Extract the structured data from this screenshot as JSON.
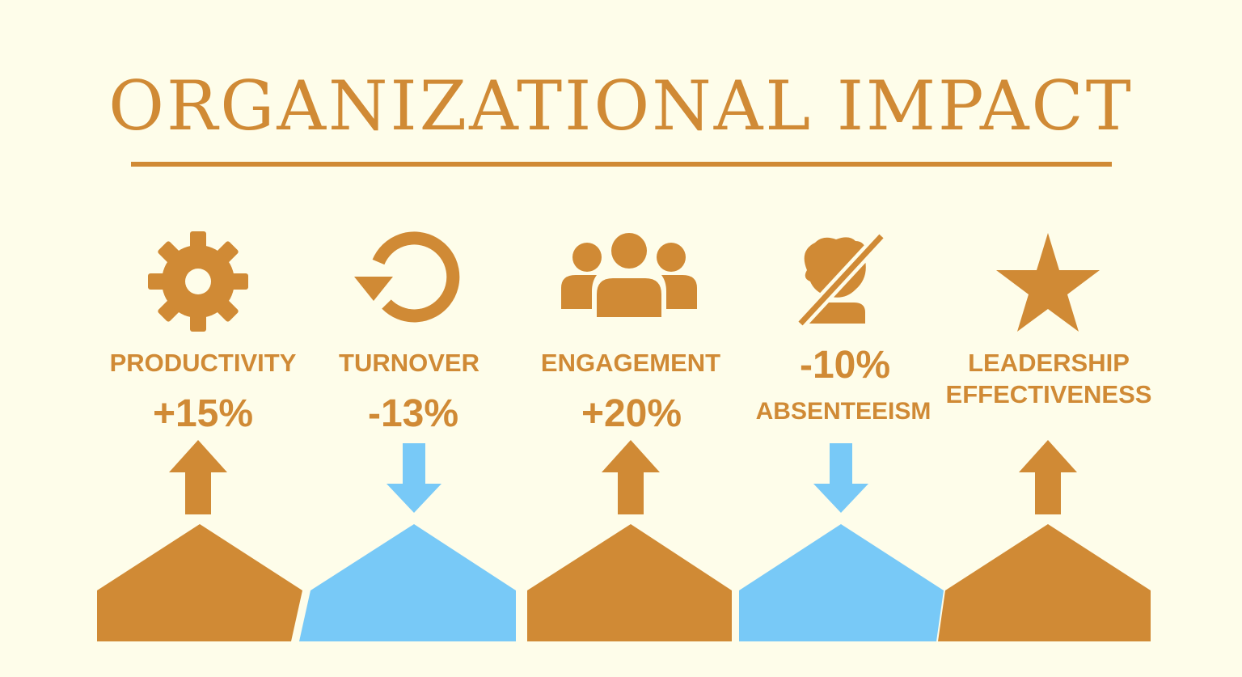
{
  "title": "ORGANIZATIONAL IMPACT",
  "colors": {
    "background": "#fefdea",
    "accent_orange": "#d08a35",
    "accent_blue": "#78c9f7"
  },
  "metrics": [
    {
      "label": "PRODUCTIVITY",
      "value": "+15%",
      "icon": "gear-icon",
      "direction": "up",
      "color": "orange"
    },
    {
      "label": "TURNOVER",
      "value": "-13%",
      "icon": "refresh-icon",
      "direction": "down",
      "color": "blue"
    },
    {
      "label": "ENGAGEMENT",
      "value": "+20%",
      "icon": "people-group-icon",
      "direction": "up",
      "color": "orange"
    },
    {
      "label": "ABSENTEEISM",
      "value": "-10%",
      "icon": "person-slash-icon",
      "direction": "down",
      "color": "blue"
    },
    {
      "label_line1": "LEADERSHIP",
      "label_line2": "EFFECTIVENESS",
      "icon": "star-icon",
      "direction": "up",
      "color": "orange"
    }
  ]
}
